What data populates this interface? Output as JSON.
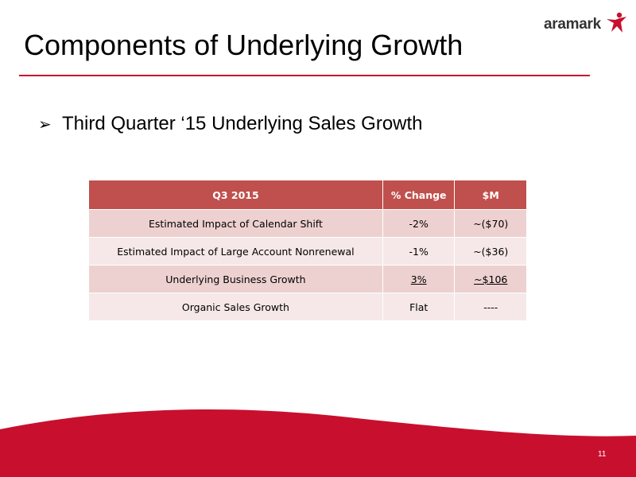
{
  "logo": {
    "text": "aramark",
    "icon": "aramark-star-person-icon",
    "colors": {
      "text": "#333333",
      "star": "#c8102e"
    }
  },
  "title": "Components of Underlying Growth",
  "bullet": {
    "marker": "➢",
    "text": "Third Quarter ‘15 Underlying Sales Growth"
  },
  "table": {
    "headers": [
      "Q3 2015",
      "% Change",
      "$M"
    ],
    "rows": [
      {
        "label": "Estimated Impact of Calendar Shift",
        "pct": "-2%",
        "amount": "~($70)"
      },
      {
        "label": "Estimated Impact of Large Account Nonrenewal",
        "pct": "-1%",
        "amount": "~($36)"
      },
      {
        "label": "Underlying Business Growth",
        "pct": "3%",
        "amount": "~$106",
        "underlined": true
      },
      {
        "label": "Organic Sales Growth",
        "pct": "Flat",
        "amount": "----"
      }
    ]
  },
  "page_number": "11",
  "colors": {
    "accent": "#c8102e",
    "header_fill": "#c0504d",
    "row_odd": "#edd1d0",
    "row_even": "#f6e8e8"
  }
}
